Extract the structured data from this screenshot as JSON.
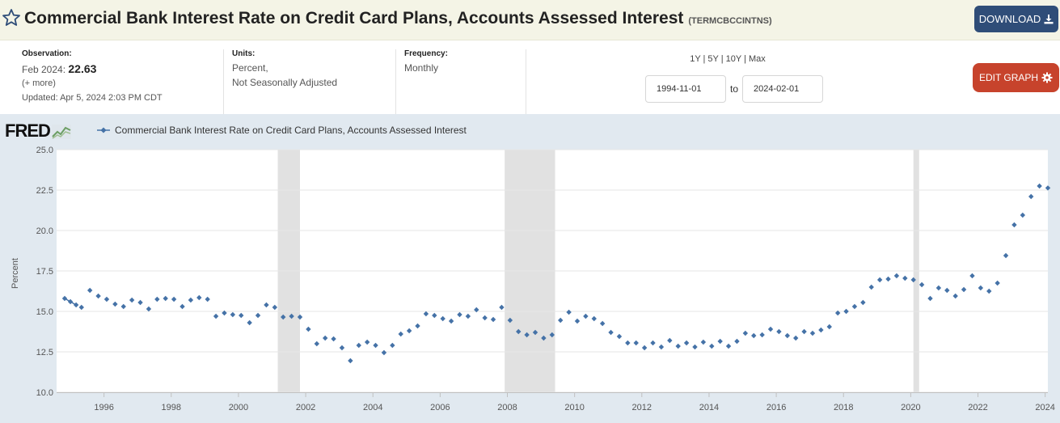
{
  "header": {
    "title": "Commercial Bank Interest Rate on Credit Card Plans, Accounts Assessed Interest",
    "series_id": "(TERMCBCCINTNS)",
    "download_label": "DOWNLOAD"
  },
  "info": {
    "observation_label": "Observation:",
    "observation_date": "Feb 2024:",
    "observation_value": "22.63",
    "more_label": "(+ more)",
    "updated": "Updated: Apr 5, 2024 2:03 PM CDT",
    "units_label": "Units:",
    "units_line1": "Percent,",
    "units_line2": "Not Seasonally Adjusted",
    "frequency_label": "Frequency:",
    "frequency_value": "Monthly",
    "range_links": "1Y | 5Y | 10Y | Max",
    "start_date": "1994-11-01",
    "to_label": "to",
    "end_date": "2024-02-01",
    "edit_label": "EDIT GRAPH"
  },
  "logo": {
    "text": "FRED"
  },
  "colors": {
    "series": "#4572a7",
    "recession": "#e1e1e1",
    "panel": "#e1e9f0",
    "download": "#2f4d78",
    "edit": "#c7432c"
  },
  "chart_data": {
    "type": "scatter",
    "title": "",
    "xlabel": "",
    "ylabel": "Percent",
    "xlim": [
      1994.83,
      2024.08
    ],
    "ylim": [
      10.0,
      25.0
    ],
    "y_ticks": [
      "10.0",
      "12.5",
      "15.0",
      "17.5",
      "20.0",
      "22.5",
      "25.0"
    ],
    "x_ticks": [
      "1996",
      "1998",
      "2000",
      "2002",
      "2004",
      "2006",
      "2008",
      "2010",
      "2012",
      "2014",
      "2016",
      "2018",
      "2020",
      "2022",
      "2024"
    ],
    "legend_position": "top-left",
    "recessions": [
      [
        2001.17,
        2001.83
      ],
      [
        2007.92,
        2009.42
      ],
      [
        2020.08,
        2020.25
      ]
    ],
    "series": [
      {
        "name": "Commercial Bank Interest Rate on Credit Card Plans, Accounts Assessed Interest",
        "points": [
          [
            1994.83,
            15.8
          ],
          [
            1995.0,
            15.6
          ],
          [
            1995.17,
            15.4
          ],
          [
            1995.33,
            15.25
          ],
          [
            1995.58,
            16.3
          ],
          [
            1995.83,
            15.95
          ],
          [
            1996.08,
            15.75
          ],
          [
            1996.33,
            15.45
          ],
          [
            1996.58,
            15.3
          ],
          [
            1996.83,
            15.7
          ],
          [
            1997.08,
            15.55
          ],
          [
            1997.33,
            15.15
          ],
          [
            1997.58,
            15.75
          ],
          [
            1997.83,
            15.8
          ],
          [
            1998.08,
            15.75
          ],
          [
            1998.33,
            15.3
          ],
          [
            1998.58,
            15.7
          ],
          [
            1998.83,
            15.85
          ],
          [
            1999.08,
            15.75
          ],
          [
            1999.33,
            14.7
          ],
          [
            1999.58,
            14.9
          ],
          [
            1999.83,
            14.8
          ],
          [
            2000.08,
            14.75
          ],
          [
            2000.33,
            14.3
          ],
          [
            2000.58,
            14.75
          ],
          [
            2000.83,
            15.4
          ],
          [
            2001.08,
            15.25
          ],
          [
            2001.33,
            14.65
          ],
          [
            2001.58,
            14.7
          ],
          [
            2001.83,
            14.65
          ],
          [
            2002.08,
            13.9
          ],
          [
            2002.33,
            13.0
          ],
          [
            2002.58,
            13.35
          ],
          [
            2002.83,
            13.3
          ],
          [
            2003.08,
            12.75
          ],
          [
            2003.33,
            11.95
          ],
          [
            2003.58,
            12.9
          ],
          [
            2003.83,
            13.1
          ],
          [
            2004.08,
            12.9
          ],
          [
            2004.33,
            12.45
          ],
          [
            2004.58,
            12.9
          ],
          [
            2004.83,
            13.6
          ],
          [
            2005.08,
            13.8
          ],
          [
            2005.33,
            14.1
          ],
          [
            2005.58,
            14.85
          ],
          [
            2005.83,
            14.75
          ],
          [
            2006.08,
            14.55
          ],
          [
            2006.33,
            14.4
          ],
          [
            2006.58,
            14.8
          ],
          [
            2006.83,
            14.7
          ],
          [
            2007.08,
            15.1
          ],
          [
            2007.33,
            14.6
          ],
          [
            2007.58,
            14.5
          ],
          [
            2007.83,
            15.25
          ],
          [
            2008.08,
            14.45
          ],
          [
            2008.33,
            13.75
          ],
          [
            2008.58,
            13.55
          ],
          [
            2008.83,
            13.7
          ],
          [
            2009.08,
            13.35
          ],
          [
            2009.33,
            13.55
          ],
          [
            2009.58,
            14.45
          ],
          [
            2009.83,
            14.95
          ],
          [
            2010.08,
            14.4
          ],
          [
            2010.33,
            14.7
          ],
          [
            2010.58,
            14.55
          ],
          [
            2010.83,
            14.25
          ],
          [
            2011.08,
            13.7
          ],
          [
            2011.33,
            13.45
          ],
          [
            2011.58,
            13.05
          ],
          [
            2011.83,
            13.05
          ],
          [
            2012.08,
            12.75
          ],
          [
            2012.33,
            13.05
          ],
          [
            2012.58,
            12.8
          ],
          [
            2012.83,
            13.2
          ],
          [
            2013.08,
            12.85
          ],
          [
            2013.33,
            13.05
          ],
          [
            2013.58,
            12.8
          ],
          [
            2013.83,
            13.1
          ],
          [
            2014.08,
            12.85
          ],
          [
            2014.33,
            13.15
          ],
          [
            2014.58,
            12.85
          ],
          [
            2014.83,
            13.15
          ],
          [
            2015.08,
            13.65
          ],
          [
            2015.33,
            13.5
          ],
          [
            2015.58,
            13.55
          ],
          [
            2015.83,
            13.9
          ],
          [
            2016.08,
            13.75
          ],
          [
            2016.33,
            13.5
          ],
          [
            2016.58,
            13.35
          ],
          [
            2016.83,
            13.75
          ],
          [
            2017.08,
            13.65
          ],
          [
            2017.33,
            13.85
          ],
          [
            2017.58,
            14.05
          ],
          [
            2017.83,
            14.9
          ],
          [
            2018.08,
            15.0
          ],
          [
            2018.33,
            15.3
          ],
          [
            2018.58,
            15.55
          ],
          [
            2018.83,
            16.5
          ],
          [
            2019.08,
            16.95
          ],
          [
            2019.33,
            17.0
          ],
          [
            2019.58,
            17.2
          ],
          [
            2019.83,
            17.05
          ],
          [
            2020.08,
            16.95
          ],
          [
            2020.33,
            16.65
          ],
          [
            2020.58,
            15.8
          ],
          [
            2020.83,
            16.45
          ],
          [
            2021.08,
            16.3
          ],
          [
            2021.33,
            15.95
          ],
          [
            2021.58,
            16.35
          ],
          [
            2021.83,
            17.2
          ],
          [
            2022.08,
            16.45
          ],
          [
            2022.33,
            16.25
          ],
          [
            2022.58,
            16.75
          ],
          [
            2022.83,
            18.45
          ],
          [
            2023.08,
            20.35
          ],
          [
            2023.33,
            20.95
          ],
          [
            2023.58,
            22.1
          ],
          [
            2023.83,
            22.75
          ],
          [
            2024.08,
            22.63
          ]
        ]
      }
    ]
  }
}
